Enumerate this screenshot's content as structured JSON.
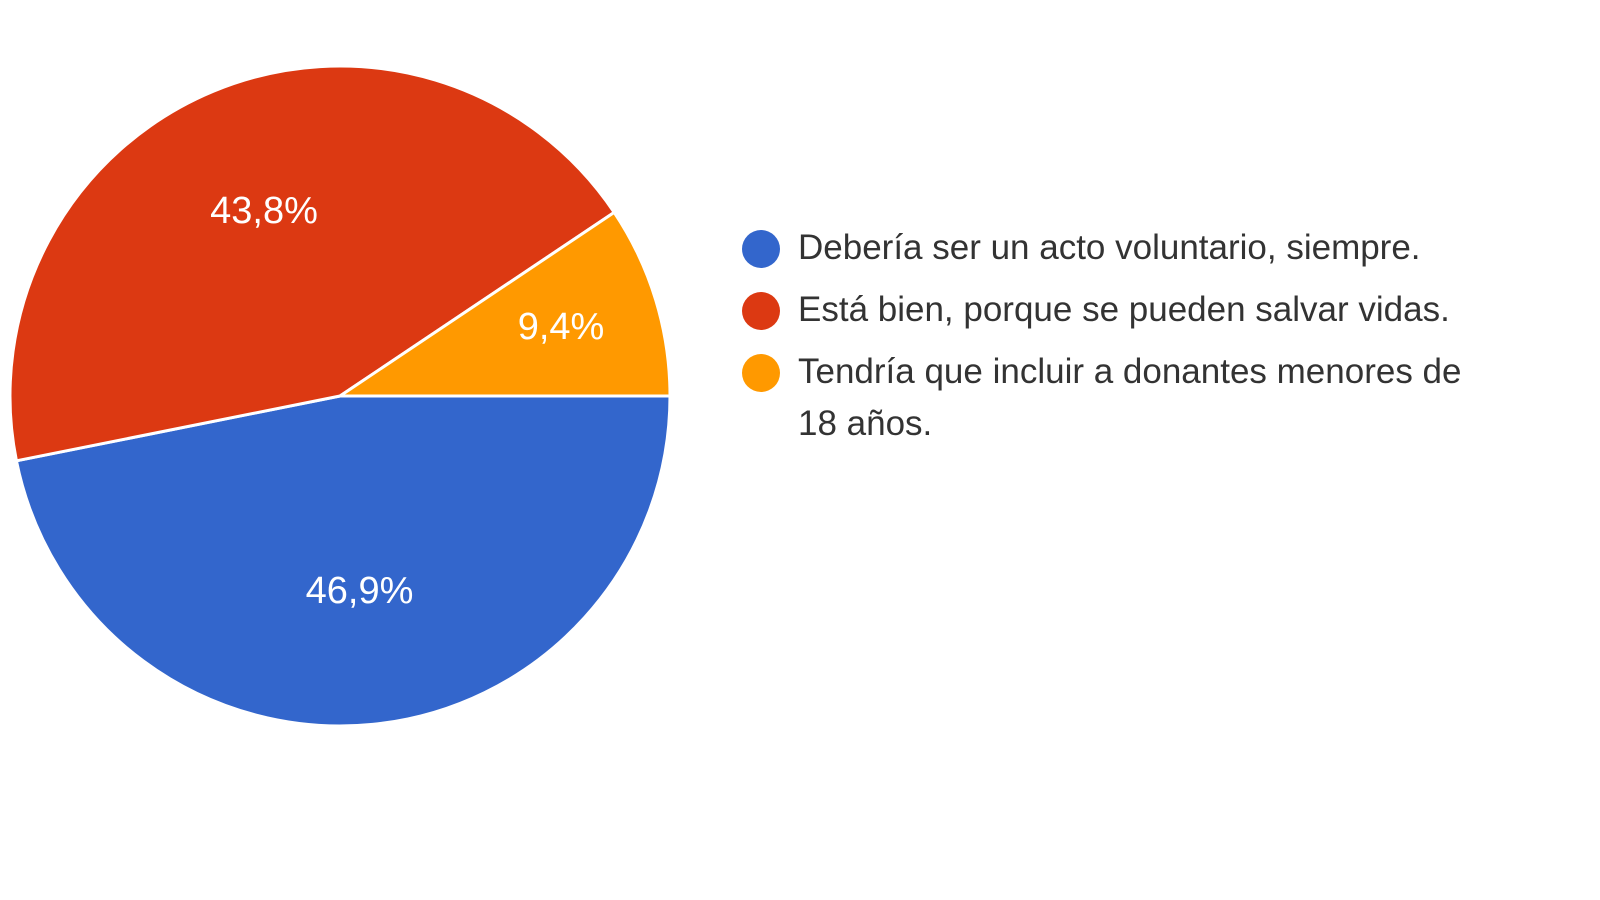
{
  "chart_data": {
    "type": "pie",
    "title": "",
    "slices": [
      {
        "name": "Debería ser un acto voluntario, siempre.",
        "value": 46.9,
        "label": "46,9%",
        "color": "#3366cc"
      },
      {
        "name": "Está bien, porque se pueden salvar vidas.",
        "value": 43.8,
        "label": "43,8%",
        "color": "#dc3912"
      },
      {
        "name": "Tendría que incluir a donantes menores de 18 años.",
        "value": 9.4,
        "label": "9,4%",
        "color": "#ff9900"
      }
    ],
    "legend_position": "right"
  }
}
